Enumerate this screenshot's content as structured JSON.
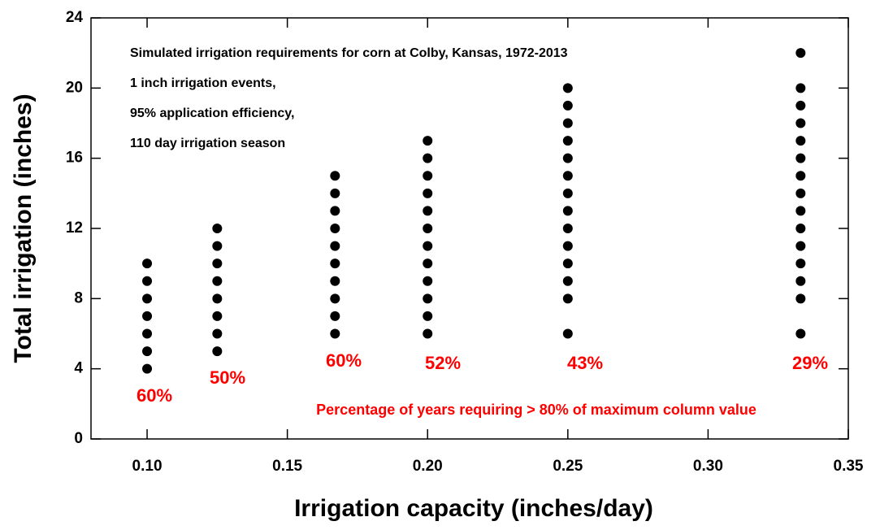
{
  "chart_data": {
    "type": "scatter",
    "annotations": [
      "Simulated irrigation requirements for corn at Colby, Kansas, 1972-2013",
      "1 inch irrigation events,",
      "95% application efficiency,",
      "110 day irrigation season"
    ],
    "percent_labels": [
      "60%",
      "50%",
      "60%",
      "52%",
      "43%",
      "29%"
    ],
    "percent_note": "Percentage of years requiring > 80% of maximum column value",
    "xlabel": "Irrigation capacity (inches/day)",
    "ylabel": "Total irrigation (inches)",
    "series": [
      {
        "color": "#000000",
        "x": [
          0.1,
          0.1,
          0.1,
          0.1,
          0.1,
          0.1,
          0.1,
          0.125,
          0.125,
          0.125,
          0.125,
          0.125,
          0.125,
          0.125,
          0.125,
          0.167,
          0.167,
          0.167,
          0.167,
          0.167,
          0.167,
          0.167,
          0.167,
          0.167,
          0.167,
          0.2,
          0.2,
          0.2,
          0.2,
          0.2,
          0.2,
          0.2,
          0.2,
          0.2,
          0.2,
          0.2,
          0.2,
          0.25,
          0.25,
          0.25,
          0.25,
          0.25,
          0.25,
          0.25,
          0.25,
          0.25,
          0.25,
          0.25,
          0.25,
          0.25,
          0.25,
          0.333,
          0.333,
          0.333,
          0.333,
          0.333,
          0.333,
          0.333,
          0.333,
          0.333,
          0.333,
          0.333,
          0.333,
          0.333,
          0.333,
          0.333
        ],
        "values": [
          4,
          5,
          6,
          7,
          8,
          9,
          10,
          5,
          6,
          7,
          8,
          9,
          10,
          11,
          12,
          6,
          7,
          8,
          9,
          10,
          11,
          12,
          13,
          14,
          15,
          6,
          7,
          8,
          9,
          10,
          11,
          12,
          13,
          14,
          15,
          16,
          17,
          6,
          8,
          9,
          10,
          11,
          12,
          13,
          14,
          15,
          16,
          17,
          18,
          19,
          20,
          6,
          8,
          9,
          10,
          11,
          12,
          13,
          14,
          15,
          16,
          17,
          18,
          19,
          20,
          22
        ]
      }
    ],
    "xlim": [
      0.08,
      0.35
    ],
    "xticks": [
      {
        "value": 0.1,
        "label": "0.10"
      },
      {
        "value": 0.15,
        "label": "0.15"
      },
      {
        "value": 0.2,
        "label": "0.20"
      },
      {
        "value": 0.25,
        "label": "0.25"
      },
      {
        "value": 0.3,
        "label": "0.30"
      },
      {
        "value": 0.35,
        "label": "0.35"
      }
    ],
    "ylim": [
      0,
      24
    ],
    "yticks": [
      0,
      4,
      8,
      12,
      16,
      20,
      24
    ],
    "annotation_color": "#000000",
    "percent_color": "#ff0000"
  }
}
